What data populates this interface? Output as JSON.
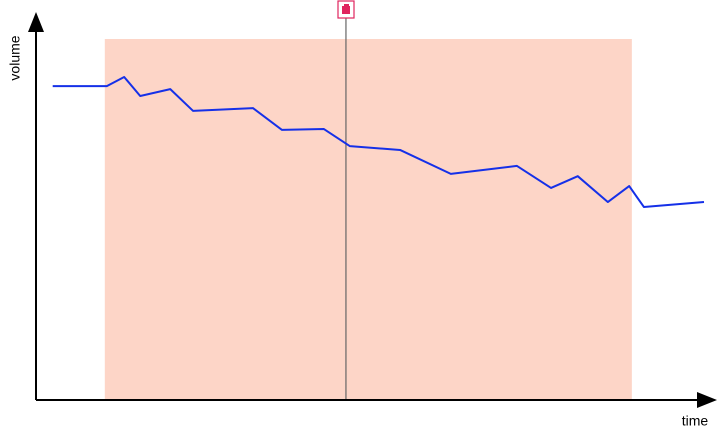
{
  "chart_data": {
    "type": "line",
    "x_label": "time",
    "y_label": "volume",
    "x": [
      2.5,
      10.6,
      13.2,
      15.6,
      20.1,
      23.5,
      32.5,
      36.8,
      43.1,
      47.0,
      54.5,
      62.1,
      72.0,
      77.1,
      81.1,
      85.6,
      88.8,
      91.0,
      100
    ],
    "series": [
      {
        "color": "#1530e8",
        "values": [
          82.6,
          82.6,
          85.0,
          80.0,
          81.8,
          76.1,
          76.8,
          71.1,
          71.3,
          66.8,
          65.8,
          59.5,
          61.6,
          55.8,
          58.9,
          52.1,
          56.3,
          50.8,
          52.1
        ]
      }
    ],
    "xlim": [
      0,
      100
    ],
    "ylim": [
      0,
      100
    ],
    "highlight_range": [
      10.3,
      89.2
    ],
    "highlight_color": "#fdd5c7",
    "marker_x": 46.4,
    "marker_color": "#666666"
  }
}
